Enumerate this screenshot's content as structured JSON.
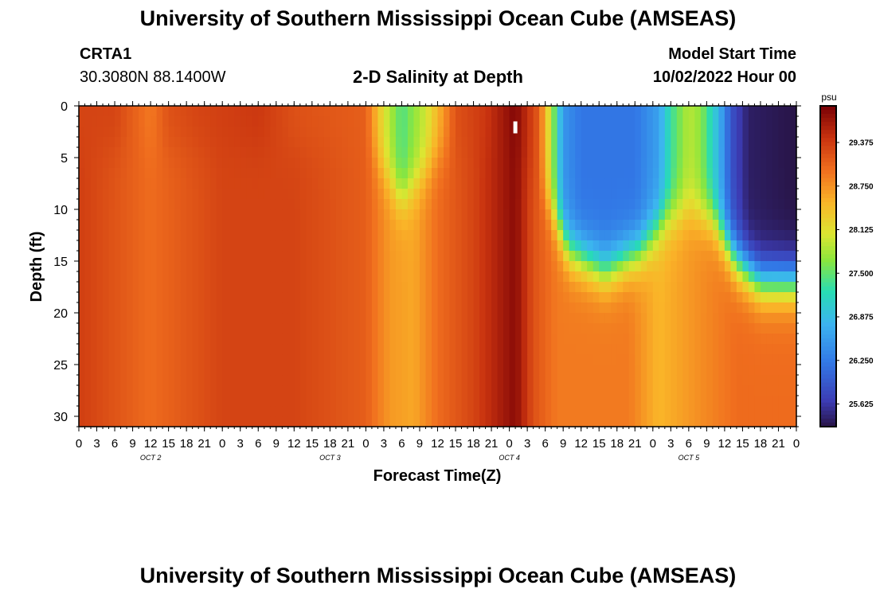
{
  "header": {
    "title": "University of Southern Mississippi Ocean Cube (AMSEAS)",
    "station_id": "CRTA1",
    "station_coords": "30.3080N  88.1400W",
    "subtitle": "2-D Salinity at Depth",
    "start_label": "Model Start Time",
    "start_value": "10/02/2022 Hour 00"
  },
  "footer": {
    "title": "University of Southern Mississippi Ocean Cube (AMSEAS)"
  },
  "chart_data": {
    "type": "heatmap",
    "title": "2-D Salinity at Depth",
    "xlabel": "Forecast Time(Z)",
    "ylabel": "Depth (ft)",
    "x_hours": [
      0,
      120
    ],
    "ylim": [
      0,
      31
    ],
    "y_inverted": true,
    "y_ticks": [
      0,
      5,
      10,
      15,
      20,
      25,
      30
    ],
    "x_tick_labels": [
      "0",
      "3",
      "6",
      "9",
      "12",
      "15",
      "18",
      "21",
      "0",
      "3",
      "6",
      "9",
      "12",
      "15",
      "18",
      "21",
      "0",
      "3",
      "6",
      "9",
      "12",
      "15",
      "18",
      "21",
      "0",
      "3",
      "6",
      "9",
      "12",
      "15",
      "18",
      "21",
      "0",
      "3",
      "6",
      "9",
      "12",
      "15",
      "18",
      "21",
      "0"
    ],
    "day_labels": [
      {
        "hour": 12,
        "label": "OCT 2"
      },
      {
        "hour": 42,
        "label": "OCT 3"
      },
      {
        "hour": 72,
        "label": "OCT 4"
      },
      {
        "hour": 102,
        "label": "OCT 5"
      }
    ],
    "colorbar": {
      "unit": "psu",
      "min": 25.3,
      "max": 29.9,
      "ticks": [
        29.375,
        28.75,
        28.125,
        27.5,
        26.875,
        26.25,
        25.625
      ],
      "tick_labels": [
        "29.375",
        "28.750",
        "28.125",
        "27.500",
        "26.875",
        "26.250",
        "25.625"
      ]
    },
    "surface_profile": [
      [
        0,
        29.3
      ],
      [
        6,
        29.3
      ],
      [
        12,
        28.9
      ],
      [
        15,
        29.2
      ],
      [
        20,
        29.3
      ],
      [
        30,
        29.4
      ],
      [
        36,
        29.2
      ],
      [
        48,
        29.1
      ],
      [
        51,
        28.1
      ],
      [
        54,
        27.4
      ],
      [
        58,
        28.0
      ],
      [
        63,
        29.2
      ],
      [
        68,
        29.4
      ],
      [
        73,
        29.85
      ],
      [
        77,
        29.1
      ],
      [
        79,
        27.9
      ],
      [
        81,
        26.5
      ],
      [
        84,
        26.2
      ],
      [
        93,
        26.2
      ],
      [
        97,
        26.6
      ],
      [
        99,
        27.3
      ],
      [
        102,
        27.9
      ],
      [
        104,
        27.7
      ],
      [
        107,
        26.8
      ],
      [
        109,
        25.9
      ],
      [
        112,
        25.4
      ],
      [
        120,
        25.3
      ]
    ],
    "deep_profile": [
      [
        0,
        29.35
      ],
      [
        12,
        29.0
      ],
      [
        24,
        29.3
      ],
      [
        36,
        29.3
      ],
      [
        48,
        29.1
      ],
      [
        52,
        28.7
      ],
      [
        56,
        28.6
      ],
      [
        60,
        29.0
      ],
      [
        66,
        29.3
      ],
      [
        73,
        29.8
      ],
      [
        76,
        29.2
      ],
      [
        80,
        28.9
      ],
      [
        92,
        28.9
      ],
      [
        97,
        28.5
      ],
      [
        102,
        28.7
      ],
      [
        110,
        29.0
      ],
      [
        120,
        29.0
      ]
    ],
    "mixed_depth_profile": [
      [
        0,
        4
      ],
      [
        48,
        4
      ],
      [
        54,
        9
      ],
      [
        60,
        5
      ],
      [
        72,
        3
      ],
      [
        78,
        9
      ],
      [
        82,
        14
      ],
      [
        88,
        16
      ],
      [
        94,
        14
      ],
      [
        98,
        11
      ],
      [
        102,
        10
      ],
      [
        106,
        11
      ],
      [
        110,
        15
      ],
      [
        114,
        17
      ],
      [
        120,
        17
      ]
    ],
    "marker": {
      "hour": 73,
      "depth_top": 1.5,
      "depth_bottom": 2.5
    }
  }
}
